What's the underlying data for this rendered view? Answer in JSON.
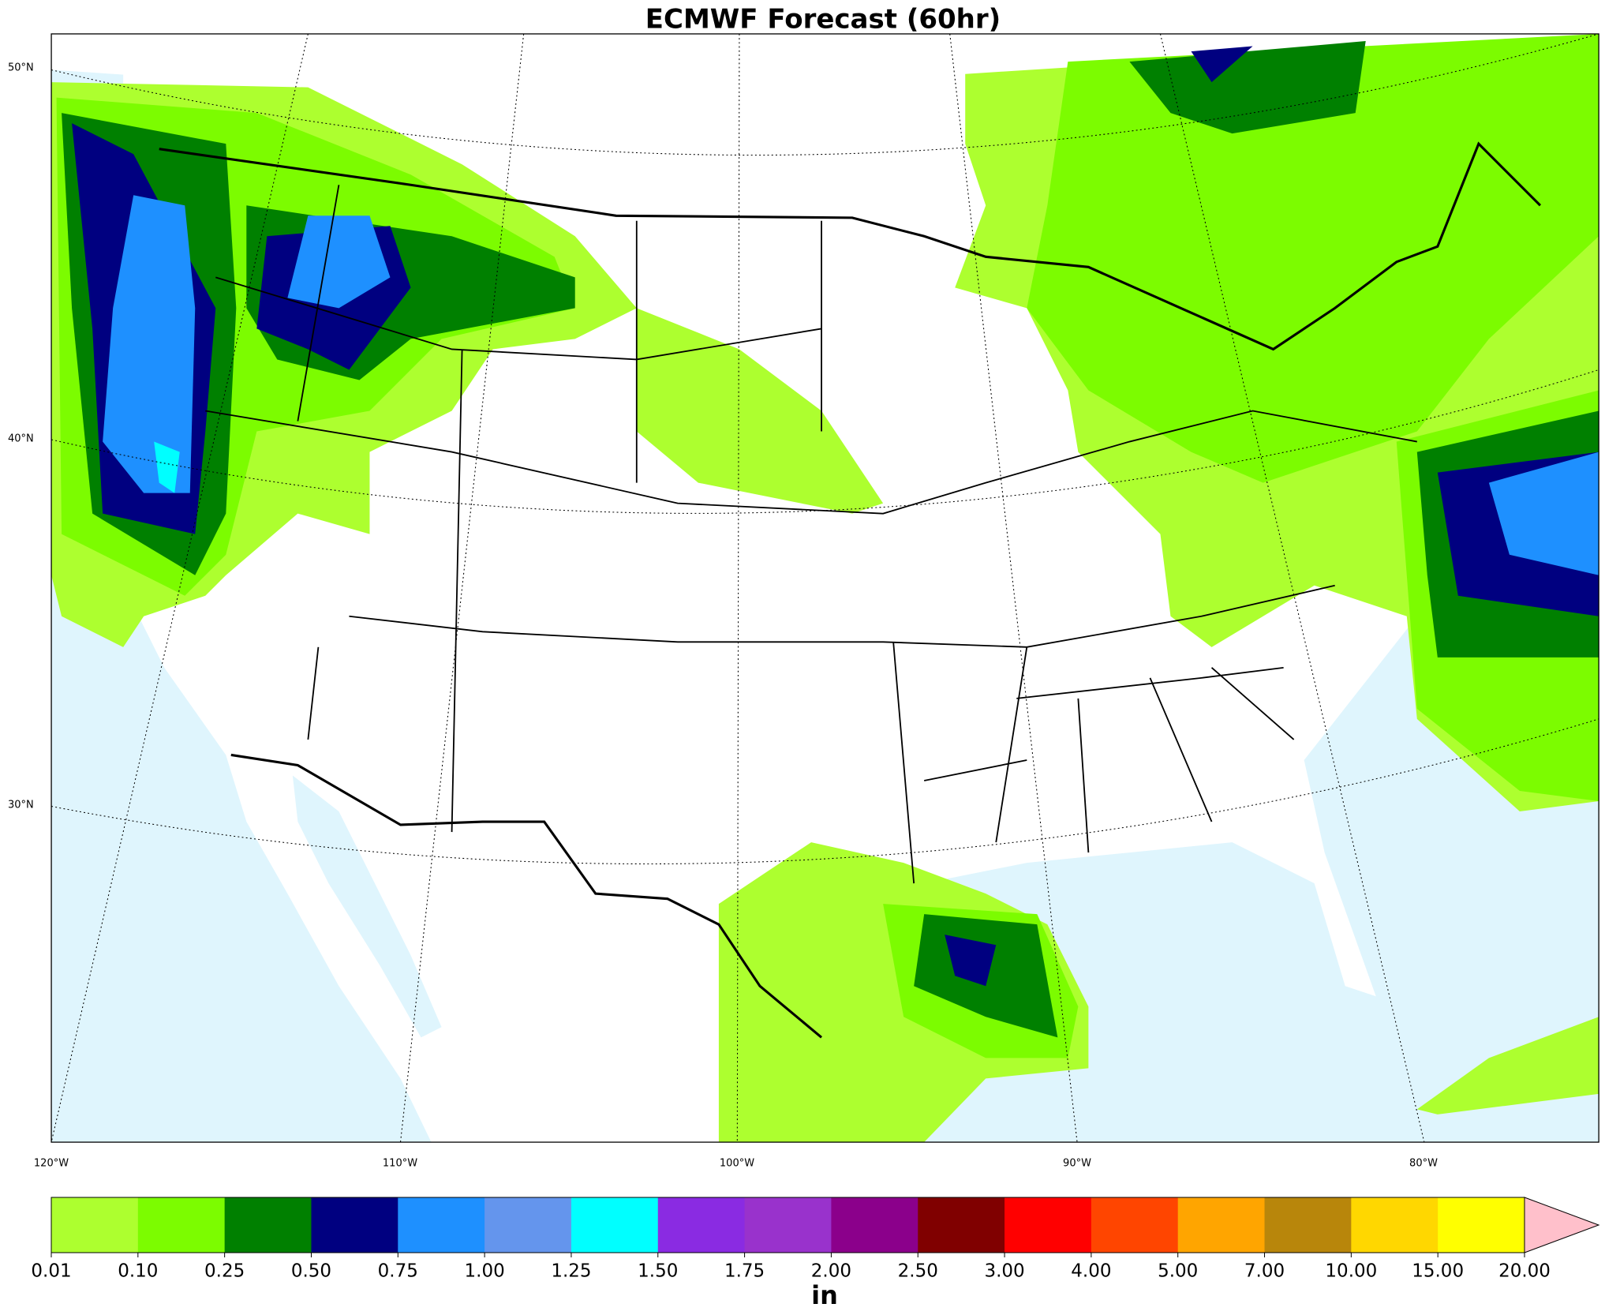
{
  "title": "ECMWF Forecast (60hr)",
  "map": {
    "lat_labels": [
      "50°N",
      "40°N",
      "30°N"
    ],
    "lon_labels": [
      "120°W",
      "110°W",
      "100°W",
      "90°W",
      "80°W"
    ]
  },
  "colorbar": {
    "ticks": [
      0.01,
      {
        "value": 0.1,
        "label": "0.10"
      },
      0.25,
      {
        "value": 0.5,
        "label": "0.50"
      },
      0.75,
      {
        "value": 1,
        "label": "1.00"
      },
      1.25,
      {
        "value": 1.5,
        "label": "1.50"
      },
      1.75,
      {
        "value": 2,
        "label": "2.00"
      },
      {
        "value": 2.5,
        "label": "2.50"
      },
      {
        "value": 3,
        "label": "3.00"
      },
      {
        "value": 4,
        "label": "4.00"
      },
      {
        "value": 5,
        "label": "5.00"
      },
      {
        "value": 7,
        "label": "7.00"
      },
      {
        "value": 10,
        "label": "10.00"
      },
      {
        "value": 15,
        "label": "15.00"
      },
      {
        "value": 20,
        "label": "20.00"
      }
    ],
    "colors": [
      "#adff2f",
      "#7cfc00",
      "#008000",
      "#000080",
      "#1e90ff",
      "#6495ed",
      "#00ffff",
      "#8a2be2",
      "#9932cc",
      "#8b008b",
      "#800000",
      "#ff0000",
      "#ff4500",
      "#ffa500",
      "#b8860b",
      "#ffd700",
      "#ffff00"
    ],
    "extend_color": "#ffc0cb",
    "label": "in"
  }
}
